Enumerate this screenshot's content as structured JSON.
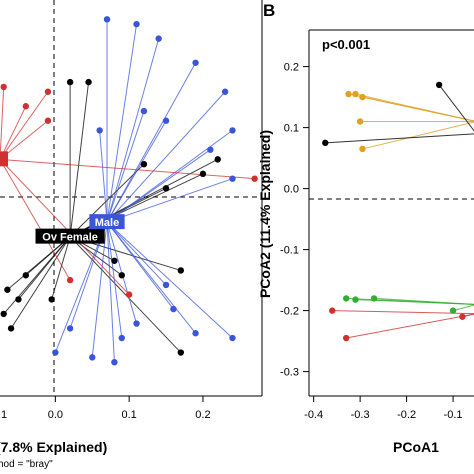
{
  "chart_data": [
    {
      "type": "scatter",
      "panel_label": "",
      "xlabel": "(7.8% Explained)",
      "ylabel": "",
      "footnote": "hod = \"bray\"",
      "x_ticks": [
        "0.0",
        "0.1",
        "0.2"
      ],
      "x_tick_values": [
        0.0,
        0.1,
        0.2
      ],
      "left_edge_tick": "1",
      "xlim": [
        -0.075,
        0.28
      ],
      "ylim": [
        -0.4,
        0.42
      ],
      "reference_lines": {
        "x": 0,
        "y": 0
      },
      "groups": [
        {
          "label": "Ov Female",
          "color": "#000000",
          "label_box_color": "#000000",
          "centroid": [
            0.02,
            -0.07
          ],
          "points": [
            [
              0.02,
              0.25
            ],
            [
              0.045,
              0.25
            ],
            [
              0.12,
              0.08
            ],
            [
              0.15,
              0.03
            ],
            [
              0.2,
              0.06
            ],
            [
              0.22,
              0.09
            ],
            [
              0.17,
              -0.14
            ],
            [
              0.09,
              -0.15
            ],
            [
              -0.005,
              -0.2
            ],
            [
              0.17,
              -0.31
            ],
            [
              0.08,
              -0.12
            ],
            [
              -0.04,
              -0.15
            ],
            [
              -0.06,
              -0.26
            ],
            [
              -0.07,
              -0.23
            ],
            [
              -0.065,
              -0.18
            ],
            [
              -0.05,
              -0.2
            ]
          ]
        },
        {
          "label": "Male",
          "color": "#3a55d8",
          "label_box_color": "#3a55d8",
          "centroid": [
            0.07,
            -0.04
          ],
          "points": [
            [
              0.07,
              0.38
            ],
            [
              0.11,
              0.37
            ],
            [
              0.14,
              0.34
            ],
            [
              0.19,
              0.29
            ],
            [
              0.23,
              0.23
            ],
            [
              0.12,
              0.19
            ],
            [
              0.15,
              0.17
            ],
            [
              0.24,
              0.15
            ],
            [
              0.21,
              0.11
            ],
            [
              0.24,
              0.05
            ],
            [
              0.06,
              0.15
            ],
            [
              0.15,
              -0.17
            ],
            [
              0.16,
              -0.22
            ],
            [
              0.19,
              -0.27
            ],
            [
              0.24,
              -0.28
            ],
            [
              0.11,
              -0.25
            ],
            [
              0.09,
              -0.28
            ],
            [
              0.08,
              -0.33
            ],
            [
              0.02,
              -0.26
            ],
            [
              0.05,
              -0.32
            ],
            [
              0.0,
              -0.31
            ]
          ]
        },
        {
          "label": "",
          "color": "#d03030",
          "label_box_color": "#d03030",
          "centroid": [
            -0.075,
            0.09
          ],
          "points": [
            [
              -0.04,
              0.2
            ],
            [
              -0.01,
              0.23
            ],
            [
              -0.01,
              0.17
            ],
            [
              0.27,
              0.05
            ],
            [
              0.02,
              -0.16
            ],
            [
              0.1,
              -0.19
            ],
            [
              -0.07,
              0.24
            ]
          ]
        }
      ]
    },
    {
      "type": "scatter",
      "panel_label": "B",
      "annotation": "p<0.001",
      "xlabel": "PCoA1",
      "ylabel": "PCoA2 (11.4% Explained)",
      "x_ticks": [
        "-0.4",
        "-0.3",
        "-0.2",
        "-0.1"
      ],
      "x_tick_values": [
        -0.4,
        -0.3,
        -0.2,
        -0.1
      ],
      "y_ticks": [
        "0.2",
        "0.1",
        "0.0",
        "-0.1",
        "-0.2",
        "-0.3"
      ],
      "y_tick_values": [
        0.2,
        0.1,
        0.0,
        -0.1,
        -0.2,
        -0.3
      ],
      "xlim": [
        -0.41,
        -0.055
      ],
      "ylim": [
        -0.34,
        0.26
      ],
      "reference_lines": {
        "y": 0
      },
      "groups": [
        {
          "label": "",
          "color": "#e0a020",
          "centroid": [
            -0.05,
            0.11
          ],
          "points": [
            [
              -0.325,
              0.155
            ],
            [
              -0.31,
              0.155
            ],
            [
              -0.295,
              0.15
            ],
            [
              -0.3,
              0.11
            ],
            [
              -0.295,
              0.065
            ]
          ]
        },
        {
          "label": "",
          "color": "#000000",
          "centroid": [
            -0.05,
            0.09
          ],
          "points": [
            [
              -0.375,
              0.075
            ],
            [
              -0.13,
              0.17
            ]
          ]
        },
        {
          "label": "",
          "color": "#30b030",
          "centroid": [
            -0.05,
            -0.19
          ],
          "points": [
            [
              -0.33,
              -0.18
            ],
            [
              -0.31,
              -0.182
            ],
            [
              -0.27,
              -0.18
            ],
            [
              -0.1,
              -0.2
            ]
          ]
        },
        {
          "label": "",
          "color": "#d03030",
          "centroid": [
            -0.05,
            -0.205
          ],
          "points": [
            [
              -0.36,
              -0.2
            ],
            [
              -0.33,
              -0.245
            ],
            [
              -0.08,
              -0.21
            ]
          ]
        }
      ]
    }
  ]
}
